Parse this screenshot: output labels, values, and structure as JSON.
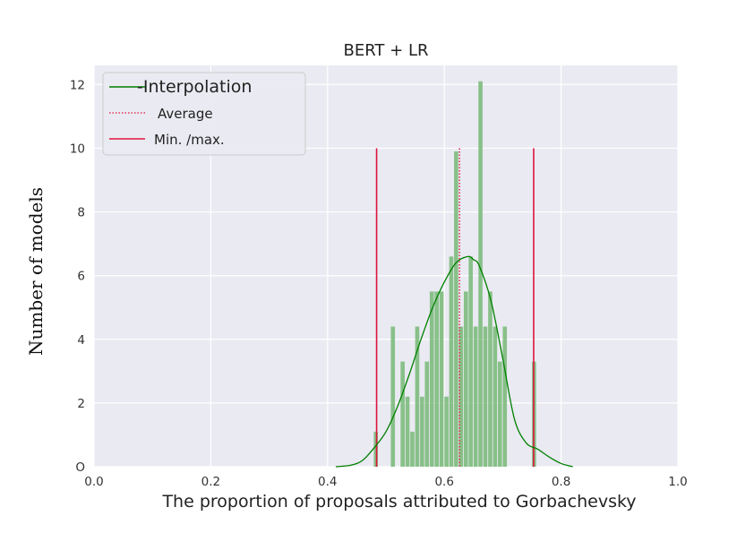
{
  "chart_data": {
    "type": "bar",
    "title": "BERT + LR",
    "xlabel": "The proportion of proposals attributed to Gorbachevsky",
    "ylabel": "Number of models",
    "xlim": [
      0.0,
      1.0
    ],
    "ylim": [
      0,
      12.6
    ],
    "xticks": [
      "0.0",
      "0.2",
      "0.4",
      "0.6",
      "0.8",
      "1.0"
    ],
    "yticks": [
      "O",
      "2",
      "4",
      "6",
      "8",
      "10",
      "12"
    ],
    "grid": true,
    "legend_position": "top-left",
    "bin_width": 0.0083,
    "bars": [
      {
        "x": 0.4833,
        "value": 1.1
      },
      {
        "x": 0.5125,
        "value": 4.4
      },
      {
        "x": 0.5292,
        "value": 3.3
      },
      {
        "x": 0.5375,
        "value": 2.2
      },
      {
        "x": 0.5458,
        "value": 1.1
      },
      {
        "x": 0.5542,
        "value": 4.4
      },
      {
        "x": 0.5625,
        "value": 2.2
      },
      {
        "x": 0.5708,
        "value": 3.3
      },
      {
        "x": 0.5792,
        "value": 5.5
      },
      {
        "x": 0.5875,
        "value": 5.5
      },
      {
        "x": 0.5958,
        "value": 5.5
      },
      {
        "x": 0.6042,
        "value": 2.2
      },
      {
        "x": 0.6125,
        "value": 6.6
      },
      {
        "x": 0.6208,
        "value": 9.9
      },
      {
        "x": 0.6292,
        "value": 4.4
      },
      {
        "x": 0.6375,
        "value": 5.5
      },
      {
        "x": 0.6458,
        "value": 6.6
      },
      {
        "x": 0.6542,
        "value": 4.4
      },
      {
        "x": 0.6625,
        "value": 12.1
      },
      {
        "x": 0.6708,
        "value": 4.4
      },
      {
        "x": 0.6792,
        "value": 5.5
      },
      {
        "x": 0.6875,
        "value": 4.4
      },
      {
        "x": 0.6958,
        "value": 3.3
      },
      {
        "x": 0.7042,
        "value": 4.4
      },
      {
        "x": 0.7542,
        "value": 3.3
      }
    ],
    "interpolation": {
      "x": [
        0.414,
        0.44,
        0.46,
        0.48,
        0.5,
        0.52,
        0.54,
        0.56,
        0.58,
        0.6,
        0.62,
        0.64,
        0.65,
        0.66,
        0.68,
        0.7,
        0.72,
        0.74,
        0.76,
        0.78,
        0.8,
        0.82
      ],
      "y": [
        0.0,
        0.05,
        0.2,
        0.6,
        1.1,
        1.9,
        2.9,
        4.0,
        5.0,
        5.8,
        6.4,
        6.6,
        6.5,
        6.3,
        5.2,
        3.4,
        1.5,
        0.75,
        0.55,
        0.3,
        0.1,
        0.0
      ]
    },
    "average": 0.626,
    "min": 0.484,
    "max": 0.753,
    "legend": [
      {
        "label": "-Interpolation",
        "style": "solid",
        "color": "#008000"
      },
      {
        "label": "Average",
        "style": "dotted",
        "color": "#dc143c"
      },
      {
        "label": "Min. /max.",
        "style": "solid",
        "color": "#dc143c"
      }
    ],
    "colors": {
      "bar": "#77b977",
      "interpolation": "#008000",
      "average": "#dc143c",
      "minmax": "#dc143c",
      "background": "#eaeaf2",
      "grid": "#ffffff"
    }
  }
}
